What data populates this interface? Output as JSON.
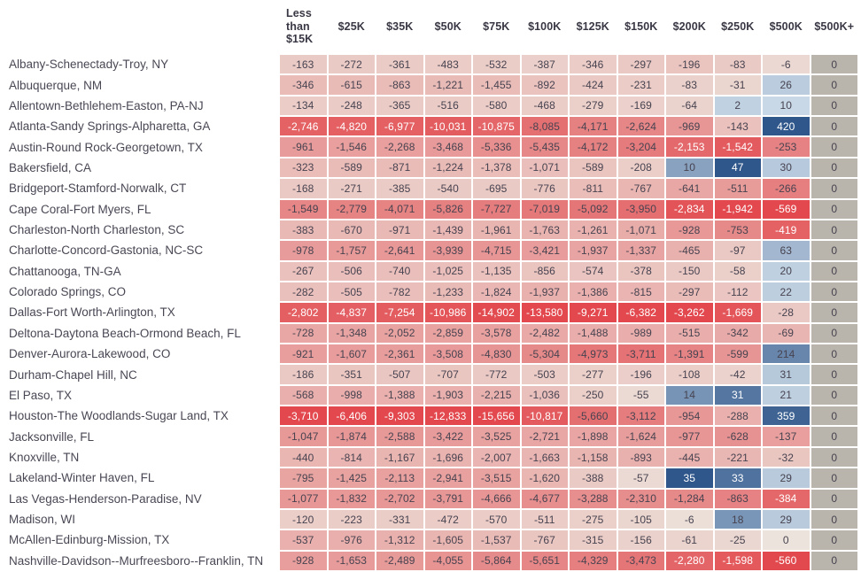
{
  "chart_data": {
    "type": "heatmap",
    "title": "",
    "xlabel": "",
    "ylabel": "",
    "legend": "none",
    "grid": "white gridlines between cells",
    "columns": [
      "Less than $15K",
      "$25K",
      "$35K",
      "$50K",
      "$75K",
      "$100K",
      "$125K",
      "$150K",
      "$200K",
      "$250K",
      "$500K",
      "$500K+"
    ],
    "rows": [
      {
        "label": "Albany-Schenectady-Troy, NY",
        "values": [
          -163,
          -272,
          -361,
          -483,
          -532,
          -387,
          -346,
          -297,
          -196,
          -83,
          -6,
          0
        ]
      },
      {
        "label": "Albuquerque, NM",
        "values": [
          -346,
          -615,
          -863,
          -1221,
          -1455,
          -892,
          -424,
          -231,
          -83,
          -31,
          26,
          0
        ]
      },
      {
        "label": "Allentown-Bethlehem-Easton, PA-NJ",
        "values": [
          -134,
          -248,
          -365,
          -516,
          -580,
          -468,
          -279,
          -169,
          -64,
          2,
          10,
          0
        ]
      },
      {
        "label": "Atlanta-Sandy Springs-Alpharetta, GA",
        "values": [
          -2746,
          -4820,
          -6977,
          -10031,
          -10875,
          -8085,
          -4171,
          -2624,
          -969,
          -143,
          420,
          0
        ]
      },
      {
        "label": "Austin-Round Rock-Georgetown, TX",
        "values": [
          -961,
          -1546,
          -2268,
          -3468,
          -5336,
          -5435,
          -4172,
          -3204,
          -2153,
          -1542,
          -253,
          0
        ]
      },
      {
        "label": "Bakersfield, CA",
        "values": [
          -323,
          -589,
          -871,
          -1224,
          -1378,
          -1071,
          -589,
          -208,
          10,
          47,
          30,
          0
        ]
      },
      {
        "label": "Bridgeport-Stamford-Norwalk, CT",
        "values": [
          -168,
          -271,
          -385,
          -540,
          -695,
          -776,
          -811,
          -767,
          -641,
          -511,
          -266,
          0
        ]
      },
      {
        "label": "Cape Coral-Fort Myers, FL",
        "values": [
          -1549,
          -2779,
          -4071,
          -5826,
          -7727,
          -7019,
          -5092,
          -3950,
          -2834,
          -1942,
          -569,
          0
        ]
      },
      {
        "label": "Charleston-North Charleston, SC",
        "values": [
          -383,
          -670,
          -971,
          -1439,
          -1961,
          -1763,
          -1261,
          -1071,
          -928,
          -753,
          -419,
          0
        ]
      },
      {
        "label": "Charlotte-Concord-Gastonia, NC-SC",
        "values": [
          -978,
          -1757,
          -2641,
          -3939,
          -4715,
          -3421,
          -1937,
          -1337,
          -465,
          -97,
          63,
          0
        ]
      },
      {
        "label": "Chattanooga, TN-GA",
        "values": [
          -267,
          -506,
          -740,
          -1025,
          -1135,
          -856,
          -574,
          -378,
          -150,
          -58,
          20,
          0
        ]
      },
      {
        "label": "Colorado Springs, CO",
        "values": [
          -282,
          -505,
          -782,
          -1233,
          -1824,
          -1937,
          -1386,
          -815,
          -297,
          -112,
          22,
          0
        ]
      },
      {
        "label": "Dallas-Fort Worth-Arlington, TX",
        "values": [
          -2802,
          -4837,
          -7254,
          -10986,
          -14902,
          -13580,
          -9271,
          -6382,
          -3262,
          -1669,
          -28,
          0
        ]
      },
      {
        "label": "Deltona-Daytona Beach-Ormond Beach, FL",
        "values": [
          -728,
          -1348,
          -2052,
          -2859,
          -3578,
          -2482,
          -1488,
          -989,
          -515,
          -342,
          -69,
          0
        ]
      },
      {
        "label": "Denver-Aurora-Lakewood, CO",
        "values": [
          -921,
          -1607,
          -2361,
          -3508,
          -4830,
          -5304,
          -4973,
          -3711,
          -1391,
          -599,
          214,
          0
        ]
      },
      {
        "label": "Durham-Chapel Hill, NC",
        "values": [
          -186,
          -351,
          -507,
          -707,
          -772,
          -503,
          -277,
          -196,
          -108,
          -42,
          31,
          0
        ]
      },
      {
        "label": "El Paso, TX",
        "values": [
          -568,
          -998,
          -1388,
          -1903,
          -2215,
          -1036,
          -250,
          -55,
          14,
          31,
          21,
          0
        ]
      },
      {
        "label": "Houston-The Woodlands-Sugar Land, TX",
        "values": [
          -3710,
          -6406,
          -9303,
          -12833,
          -15656,
          -10817,
          -5660,
          -3112,
          -954,
          -288,
          359,
          0
        ]
      },
      {
        "label": "Jacksonville, FL",
        "values": [
          -1047,
          -1874,
          -2588,
          -3422,
          -3525,
          -2721,
          -1898,
          -1624,
          -977,
          -628,
          -137,
          0
        ]
      },
      {
        "label": "Knoxville, TN",
        "values": [
          -440,
          -814,
          -1167,
          -1696,
          -2007,
          -1663,
          -1158,
          -893,
          -445,
          -221,
          -32,
          0
        ]
      },
      {
        "label": "Lakeland-Winter Haven, FL",
        "values": [
          -795,
          -1425,
          -2113,
          -2941,
          -3515,
          -1620,
          -388,
          -57,
          35,
          33,
          29,
          0
        ]
      },
      {
        "label": "Las Vegas-Henderson-Paradise, NV",
        "values": [
          -1077,
          -1832,
          -2702,
          -3791,
          -4666,
          -4677,
          -3288,
          -2310,
          -1284,
          -863,
          -384,
          0
        ]
      },
      {
        "label": "Madison, WI",
        "values": [
          -120,
          -223,
          -331,
          -472,
          -570,
          -511,
          -275,
          -105,
          -6,
          18,
          29,
          0
        ]
      },
      {
        "label": "McAllen-Edinburg-Mission, TX",
        "values": [
          -537,
          -976,
          -1312,
          -1605,
          -1537,
          -767,
          -315,
          -156,
          -61,
          -25,
          0,
          0
        ]
      },
      {
        "label": "Nashville-Davidson--Murfreesboro--Franklin, TN",
        "values": [
          -928,
          -1653,
          -2489,
          -4055,
          -5864,
          -5651,
          -4329,
          -3473,
          -2280,
          -1598,
          -560,
          0
        ]
      }
    ],
    "color_scale": {
      "scaling": "per-column diverging",
      "negative_strong": "#e2484d",
      "negative_near_zero": "#ece3dc",
      "positive_strong": "#30578b",
      "positive_near_zero": "#dce9f2",
      "all_zero_column": "#b9b5ac",
      "text_dark": "#474350",
      "text_light": "#ffffff",
      "header_text": "#3a3744",
      "gridline": "#ffffff"
    }
  }
}
